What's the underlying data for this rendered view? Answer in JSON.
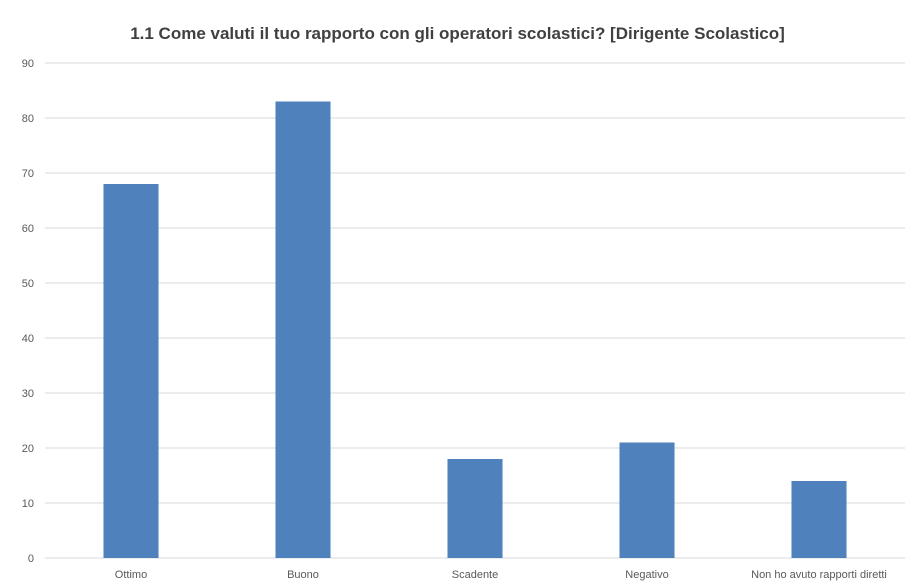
{
  "chart_data": {
    "type": "bar",
    "title": "1.1 Come valuti il tuo rapporto con gli operatori scolastici? [Dirigente Scolastico]",
    "categories": [
      "Ottimo",
      "Buono",
      "Scadente",
      "Negativo",
      "Non ho avuto rapporti diretti"
    ],
    "values": [
      68,
      83,
      18,
      21,
      14
    ],
    "ylim": [
      0,
      90
    ],
    "yticks": [
      0,
      10,
      20,
      30,
      40,
      50,
      60,
      70,
      80,
      90
    ],
    "xlabel": "",
    "ylabel": "",
    "grid": true,
    "legend": "none",
    "bar_color": "#4F81BD",
    "grid_color": "#D9D9D9"
  }
}
